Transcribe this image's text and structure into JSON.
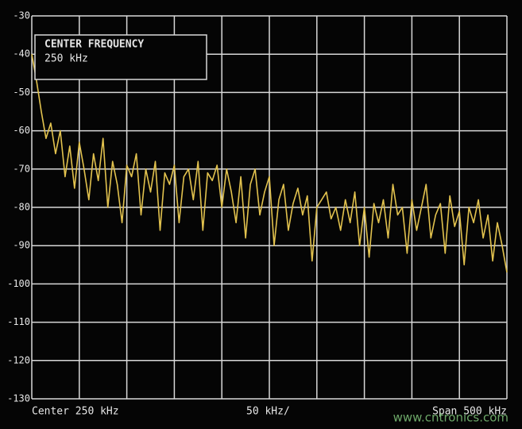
{
  "chart_data": {
    "type": "line",
    "annotations": [
      "CENTER FREQUENCY",
      "250 kHz"
    ],
    "footer": [
      "Center 250 kHz",
      "50 kHz/",
      "Span 500 kHz"
    ],
    "watermark": "www.cntronics.com",
    "xlim": [
      0,
      500
    ],
    "xticks": [
      0,
      50,
      100,
      150,
      200,
      250,
      300,
      350,
      400,
      450,
      500
    ],
    "ylim": [
      -130,
      -30
    ],
    "yticks": [
      -30,
      -40,
      -50,
      -60,
      -70,
      -80,
      -90,
      -100,
      -110,
      -120,
      -130
    ],
    "grid": true,
    "x": [
      0,
      5,
      10,
      15,
      20,
      25,
      30,
      35,
      40,
      45,
      50,
      55,
      60,
      65,
      70,
      75,
      80,
      85,
      90,
      95,
      100,
      105,
      110,
      115,
      120,
      125,
      130,
      135,
      140,
      145,
      150,
      155,
      160,
      165,
      170,
      175,
      180,
      185,
      190,
      195,
      200,
      205,
      210,
      215,
      220,
      225,
      230,
      235,
      240,
      245,
      250,
      255,
      260,
      265,
      270,
      275,
      280,
      285,
      290,
      295,
      300,
      305,
      310,
      315,
      320,
      325,
      330,
      335,
      340,
      345,
      350,
      355,
      360,
      365,
      370,
      375,
      380,
      385,
      390,
      395,
      400,
      405,
      410,
      415,
      420,
      425,
      430,
      435,
      440,
      445,
      450,
      455,
      460,
      465,
      470,
      475,
      480,
      485,
      490,
      495,
      500
    ],
    "series": [
      {
        "color": "#e2c24e",
        "values": [
          -40,
          -47,
          -55,
          -62,
          -58,
          -66,
          -60,
          -72,
          -64,
          -75,
          -63,
          -70,
          -78,
          -66,
          -73,
          -62,
          -80,
          -68,
          -74,
          -84,
          -69,
          -72,
          -66,
          -82,
          -70,
          -76,
          -68,
          -86,
          -71,
          -74,
          -69,
          -84,
          -72,
          -70,
          -78,
          -68,
          -86,
          -71,
          -73,
          -69,
          -80,
          -70,
          -76,
          -84,
          -72,
          -88,
          -74,
          -70,
          -82,
          -76,
          -72,
          -90,
          -78,
          -74,
          -86,
          -79,
          -75,
          -82,
          -77,
          -94,
          -80,
          -78,
          -76,
          -83,
          -80,
          -86,
          -78,
          -84,
          -76,
          -90,
          -80,
          -93,
          -79,
          -84,
          -78,
          -88,
          -74,
          -82,
          -80,
          -92,
          -78,
          -86,
          -80,
          -74,
          -88,
          -82,
          -79,
          -92,
          -77,
          -85,
          -81,
          -95,
          -80,
          -84,
          -78,
          -88,
          -82,
          -94,
          -84,
          -90,
          -97
        ]
      }
    ]
  }
}
